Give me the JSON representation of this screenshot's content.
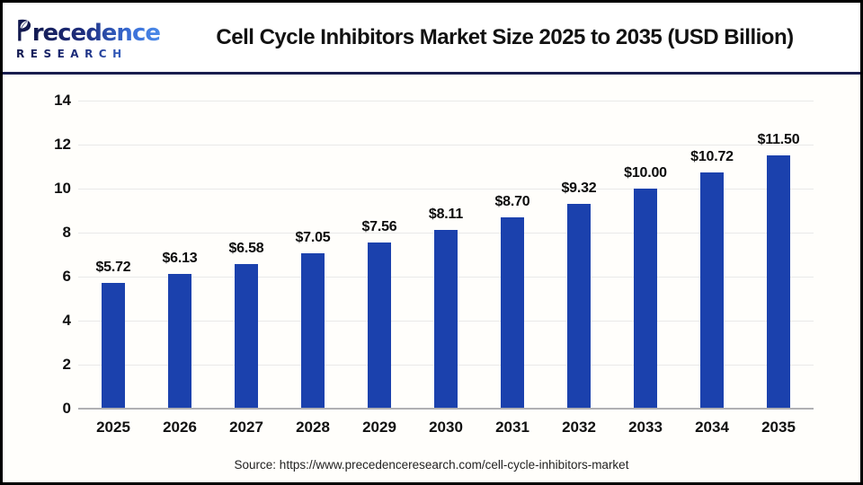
{
  "header": {
    "logo": {
      "name": "Precedence",
      "wordmark_sans_initial": "recedence",
      "subtext": "RESEARCH"
    },
    "title": "Cell Cycle Inhibitors Market Size 2025 to 2035 (USD Billion)"
  },
  "chart_data": {
    "type": "bar",
    "title": "Cell Cycle Inhibitors Market Size 2025 to 2035 (USD Billion)",
    "categories": [
      "2025",
      "2026",
      "2027",
      "2028",
      "2029",
      "2030",
      "2031",
      "2032",
      "2033",
      "2034",
      "2035"
    ],
    "values": [
      5.72,
      6.13,
      6.58,
      7.05,
      7.56,
      8.11,
      8.7,
      9.32,
      10.0,
      10.72,
      11.5
    ],
    "value_labels": [
      "$5.72",
      "$6.13",
      "$6.58",
      "$7.05",
      "$7.56",
      "$8.11",
      "$8.70",
      "$9.32",
      "$10.00",
      "$10.72",
      "$11.50"
    ],
    "xlabel": "",
    "ylabel": "",
    "ylim": [
      0,
      14
    ],
    "yticks": [
      0,
      2,
      4,
      6,
      8,
      10,
      12,
      14
    ],
    "grid": true,
    "legend": false,
    "unit": "USD Billion",
    "bar_color": "#1b41ad"
  },
  "footer": {
    "source": "Source: https://www.precedenceresearch.com/cell-cycle-inhibitors-market"
  },
  "colors": {
    "bar": "#1b41ad",
    "divider_navy": "#191e4e",
    "logo_navy": "#131a50",
    "logo_blue": "#3f7de2",
    "gridline": "#e9e9e9",
    "baseline": "#b0b0b3",
    "frame_border": "#000000",
    "background": "#ffffff"
  }
}
